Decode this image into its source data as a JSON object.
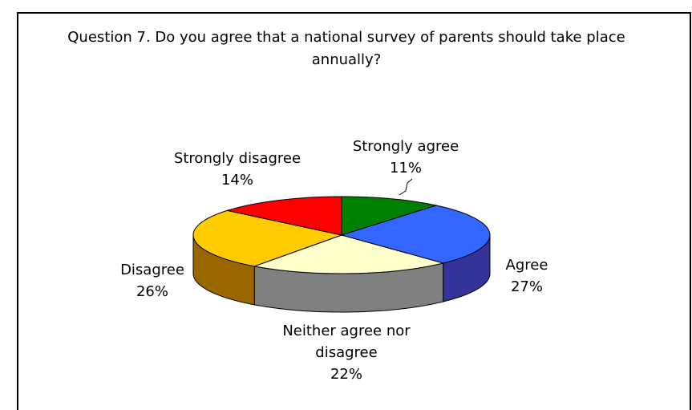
{
  "chart_data": {
    "type": "pie",
    "title_lines": [
      "Question 7. Do you agree that a national survey of parents should take place",
      "annually?"
    ],
    "categories": [
      "Strongly agree",
      "Agree",
      "Neither agree nor disagree",
      "Disagree",
      "Strongly disagree"
    ],
    "values": [
      11,
      27,
      22,
      26,
      14
    ],
    "value_labels": [
      "11%",
      "27%",
      "22%",
      "26%",
      "14%"
    ],
    "label_lines": [
      [
        "Strongly agree",
        "11%"
      ],
      [
        "Agree",
        "27%"
      ],
      [
        "Neither agree nor",
        "disagree",
        "22%"
      ],
      [
        "Disagree",
        "26%"
      ],
      [
        "Strongly disagree",
        "14%"
      ]
    ],
    "colors": [
      "#008000",
      "#3366ff",
      "#ffffcc",
      "#ffcc00",
      "#ff0000"
    ],
    "side_colors": [
      "#004d00",
      "#333399",
      "#808080",
      "#996600",
      "#990000"
    ],
    "grid": false,
    "legend": "none"
  }
}
